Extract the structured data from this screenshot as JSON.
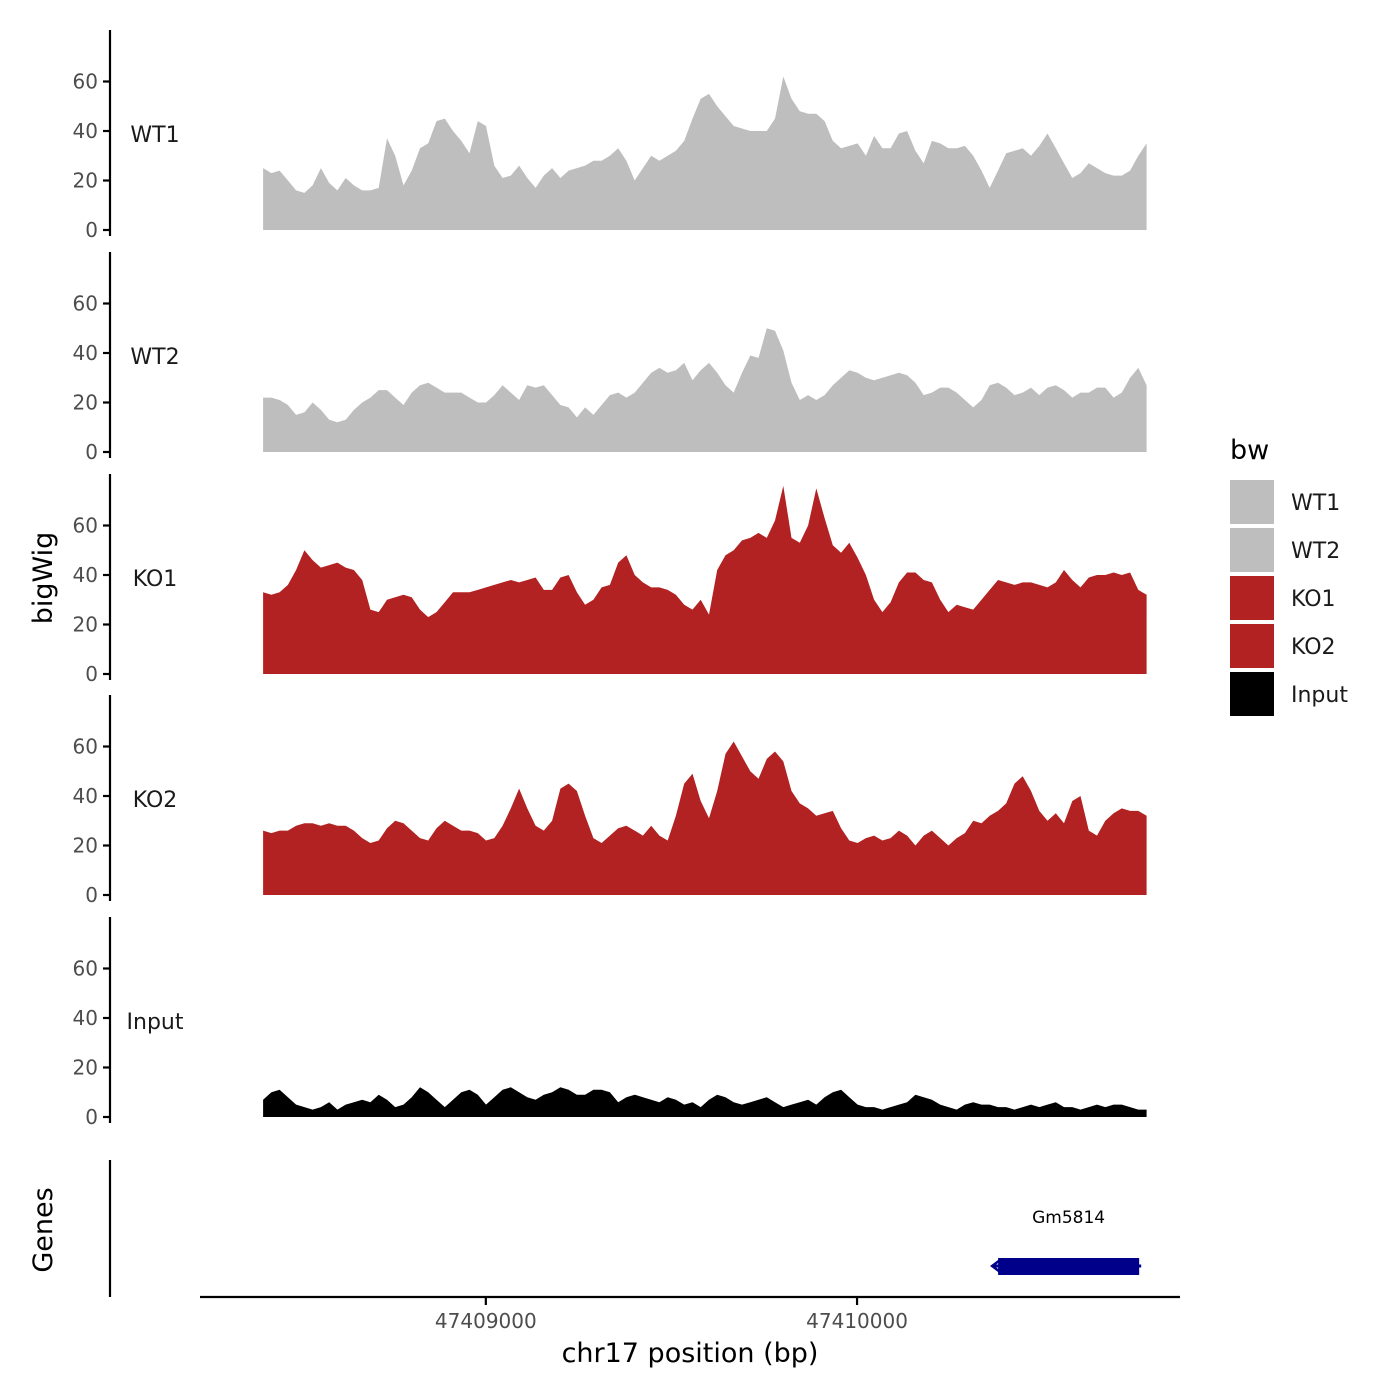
{
  "chart_data": {
    "type": "area",
    "chromosome": "chr17",
    "xlabel": "chr17 position (bp)",
    "ylabel_tracks": "bigWig",
    "ylabel_genes": "Genes",
    "xlim": [
      47408230,
      47410870
    ],
    "x_start": 47408400,
    "x_end": 47410780,
    "xticks": [
      47409000,
      47410000
    ],
    "xtick_labels": [
      "47409000",
      "47410000"
    ],
    "ylim": [
      0,
      80
    ],
    "yticks": [
      0,
      20,
      40,
      60
    ],
    "ytick_labels": [
      "0",
      "20",
      "40",
      "60"
    ],
    "legend_title": "bw",
    "series": [
      {
        "name": "WT1",
        "color": "#bebebe",
        "values": [
          25,
          23,
          24,
          20,
          16,
          15,
          18,
          25,
          19,
          16,
          21,
          18,
          16,
          16,
          17,
          37,
          30,
          18,
          24,
          33,
          35,
          44,
          45,
          40,
          36,
          31,
          44,
          42,
          26,
          21,
          22,
          26,
          21,
          17,
          22,
          25,
          21,
          24,
          25,
          26,
          28,
          28,
          30,
          33,
          28,
          20,
          25,
          30,
          28,
          30,
          32,
          36,
          45,
          53,
          55,
          50,
          46,
          42,
          41,
          40,
          40,
          40,
          45,
          62,
          53,
          48,
          47,
          47,
          44,
          36,
          33,
          34,
          35,
          30,
          38,
          33,
          33,
          39,
          40,
          32,
          27,
          36,
          35,
          33,
          33,
          34,
          30,
          24,
          17,
          24,
          31,
          32,
          33,
          30,
          34,
          39,
          33,
          27,
          21,
          23,
          27,
          25,
          23,
          22,
          22,
          24,
          30,
          35
        ]
      },
      {
        "name": "WT2",
        "color": "#bebebe",
        "values": [
          22,
          22,
          21,
          19,
          15,
          16,
          20,
          17,
          13,
          12,
          13,
          17,
          20,
          22,
          25,
          25,
          22,
          19,
          24,
          27,
          28,
          26,
          24,
          24,
          24,
          22,
          20,
          20,
          23,
          27,
          24,
          21,
          27,
          26,
          27,
          23,
          19,
          18,
          14,
          18,
          15,
          19,
          23,
          24,
          22,
          24,
          28,
          32,
          34,
          32,
          33,
          36,
          29,
          33,
          36,
          32,
          27,
          24,
          32,
          39,
          38,
          50,
          49,
          41,
          28,
          21,
          23,
          21,
          23,
          27,
          30,
          33,
          32,
          30,
          29,
          30,
          31,
          32,
          31,
          28,
          23,
          24,
          26,
          26,
          24,
          21,
          18,
          21,
          27,
          28,
          26,
          23,
          24,
          26,
          23,
          26,
          27,
          25,
          22,
          24,
          24,
          26,
          26,
          22,
          24,
          30,
          34,
          27
        ]
      },
      {
        "name": "KO1",
        "color": "#b22222",
        "values": [
          33,
          32,
          33,
          36,
          42,
          50,
          46,
          43,
          44,
          45,
          43,
          42,
          38,
          26,
          25,
          30,
          31,
          32,
          31,
          26,
          23,
          25,
          29,
          33,
          33,
          33,
          34,
          35,
          36,
          37,
          38,
          37,
          38,
          39,
          34,
          34,
          39,
          40,
          33,
          28,
          30,
          35,
          36,
          45,
          48,
          40,
          37,
          35,
          35,
          34,
          32,
          28,
          26,
          30,
          24,
          42,
          48,
          50,
          54,
          55,
          57,
          55,
          62,
          76,
          55,
          53,
          60,
          75,
          63,
          52,
          49,
          53,
          47,
          40,
          30,
          25,
          29,
          37,
          41,
          41,
          38,
          37,
          30,
          25,
          28,
          27,
          26,
          30,
          34,
          38,
          37,
          36,
          37,
          37,
          36,
          35,
          37,
          42,
          38,
          35,
          39,
          40,
          40,
          41,
          40,
          41,
          34,
          32
        ]
      },
      {
        "name": "KO2",
        "color": "#b22222",
        "values": [
          26,
          25,
          26,
          26,
          28,
          29,
          29,
          28,
          29,
          28,
          28,
          26,
          23,
          21,
          22,
          27,
          30,
          29,
          26,
          23,
          22,
          27,
          30,
          28,
          26,
          26,
          25,
          22,
          23,
          28,
          35,
          43,
          35,
          28,
          26,
          30,
          43,
          45,
          42,
          32,
          23,
          21,
          24,
          27,
          28,
          26,
          24,
          28,
          24,
          22,
          32,
          45,
          49,
          38,
          31,
          42,
          57,
          62,
          56,
          50,
          47,
          55,
          58,
          54,
          42,
          37,
          35,
          32,
          33,
          34,
          27,
          22,
          21,
          23,
          24,
          22,
          23,
          26,
          24,
          20,
          24,
          26,
          23,
          20,
          23,
          25,
          30,
          29,
          32,
          34,
          37,
          45,
          48,
          42,
          34,
          30,
          33,
          29,
          38,
          40,
          26,
          24,
          30,
          33,
          35,
          34,
          34,
          32
        ]
      },
      {
        "name": "Input",
        "color": "#000000",
        "values": [
          7,
          10,
          11,
          8,
          5,
          4,
          3,
          4,
          6,
          3,
          5,
          6,
          7,
          6,
          9,
          7,
          4,
          5,
          8,
          12,
          10,
          7,
          4,
          7,
          10,
          11,
          9,
          5,
          8,
          11,
          12,
          10,
          8,
          7,
          9,
          10,
          12,
          11,
          9,
          9,
          11,
          11,
          10,
          6,
          8,
          9,
          8,
          7,
          6,
          8,
          7,
          5,
          6,
          4,
          7,
          9,
          8,
          6,
          5,
          6,
          7,
          8,
          6,
          4,
          5,
          6,
          7,
          5,
          8,
          10,
          11,
          8,
          5,
          4,
          4,
          3,
          4,
          5,
          6,
          9,
          8,
          7,
          5,
          4,
          3,
          5,
          6,
          5,
          5,
          4,
          4,
          3,
          4,
          5,
          4,
          5,
          6,
          4,
          4,
          3,
          4,
          5,
          4,
          5,
          5,
          4,
          3,
          3
        ]
      }
    ],
    "genes": [
      {
        "name": "Gm5814",
        "start": 47410380,
        "end": 47410760,
        "strand": "-",
        "color": "#00008b"
      }
    ]
  }
}
